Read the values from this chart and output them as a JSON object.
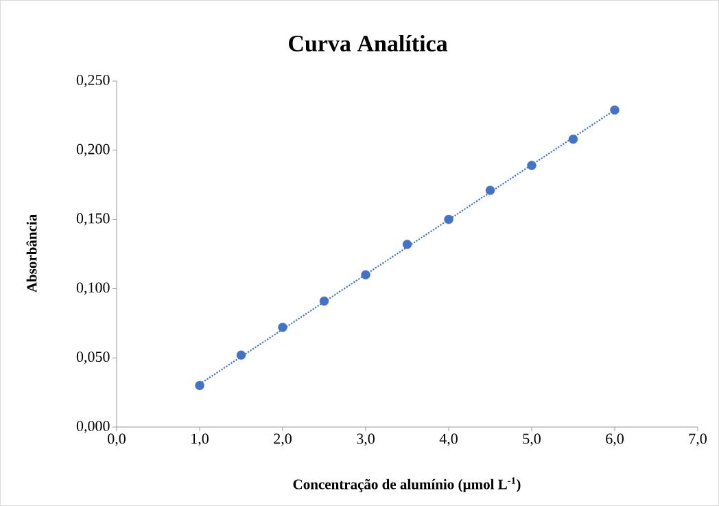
{
  "chart_data": {
    "type": "scatter",
    "title": "Curva Analítica",
    "xlabel": "Concentração de alumínio (µmol L$^{-1}$)",
    "ylabel": "Absorbância",
    "marker": "circle",
    "series": [
      {
        "color": "#4472c4",
        "x": [
          1.0,
          1.5,
          2.0,
          2.5,
          3.0,
          3.5,
          4.0,
          4.5,
          5.0,
          5.5,
          6.0
        ],
        "values": [
          0.03,
          0.052,
          0.072,
          0.091,
          0.11,
          0.132,
          0.15,
          0.171,
          0.189,
          0.208,
          0.229
        ]
      },
      {
        "type": "line",
        "color": "#4472c4",
        "marker": "none",
        "line_style": "dotted",
        "x": [
          1.0,
          6.0
        ],
        "values": [
          0.031,
          0.229
        ]
      }
    ],
    "xlim": [
      0,
      7
    ],
    "ylim": [
      0,
      0.25
    ],
    "xticks": [
      {
        "value": 0,
        "label": "0,0"
      },
      {
        "value": 1,
        "label": "1,0"
      },
      {
        "value": 2,
        "label": "2,0"
      },
      {
        "value": 3,
        "label": "3,0"
      },
      {
        "value": 4,
        "label": "4,0"
      },
      {
        "value": 5,
        "label": "5,0"
      },
      {
        "value": 6,
        "label": "6,0"
      },
      {
        "value": 7,
        "label": "7,0"
      }
    ],
    "yticks": [
      {
        "value": 0,
        "label": "0,000"
      },
      {
        "value": 0.05,
        "label": "0,050"
      },
      {
        "value": 0.1,
        "label": "0,100"
      },
      {
        "value": 0.15,
        "label": "0,150"
      },
      {
        "value": 0.2,
        "label": "0,200"
      },
      {
        "value": 0.25,
        "label": "0,250"
      }
    ],
    "grid": false
  }
}
